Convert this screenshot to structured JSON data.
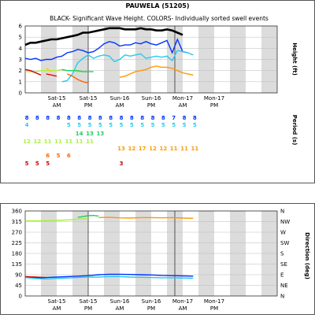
{
  "chart_data": [
    {
      "type": "line",
      "title": "PAUWELA (51205)",
      "subtitle": "BLACK- Significant Wave Height.  COLORS- Individually sorted swell events",
      "ylabel": "Height (ft)",
      "ylim": [
        0,
        6
      ],
      "yticks": [
        "0",
        "1",
        "2",
        "3",
        "4",
        "5",
        "6"
      ],
      "xlim": [
        0,
        96
      ],
      "x_tick_labels": [
        {
          "x": 12,
          "line1": "Sat-15",
          "line2": "AM"
        },
        {
          "x": 24,
          "line1": "Sat-15",
          "line2": "PM"
        },
        {
          "x": 36,
          "line1": "Sun-16",
          "line2": "AM"
        },
        {
          "x": 48,
          "line1": "Sun-16",
          "line2": "PM"
        },
        {
          "x": 60,
          "line1": "Mon-17",
          "line2": "AM"
        },
        {
          "x": 72,
          "line1": "Mon-17",
          "line2": "PM"
        }
      ],
      "grid": true,
      "series": [
        {
          "color": "#000000",
          "x": [
            0,
            2,
            4,
            6,
            8,
            10,
            12,
            14,
            16,
            18,
            20,
            22,
            24,
            26,
            28,
            30,
            32,
            34,
            36,
            38,
            40,
            42,
            44,
            46,
            48,
            50,
            52,
            54,
            56,
            58,
            60
          ],
          "y": [
            4.3,
            4.5,
            4.5,
            4.6,
            4.7,
            4.8,
            4.8,
            4.9,
            5.0,
            5.1,
            5.2,
            5.4,
            5.4,
            5.5,
            5.6,
            5.7,
            5.8,
            5.8,
            5.8,
            5.7,
            5.7,
            5.7,
            5.8,
            5.7,
            5.7,
            5.6,
            5.6,
            5.7,
            5.6,
            5.4,
            5.2
          ]
        },
        {
          "color": "#0033ff",
          "x": [
            0,
            2,
            4,
            6,
            8,
            10,
            12,
            14,
            16,
            18,
            20,
            22,
            24,
            26,
            28,
            30,
            32,
            34,
            36,
            38,
            40,
            42,
            44,
            46,
            48,
            50,
            52,
            54,
            56,
            58,
            60,
            62
          ],
          "y": [
            3.1,
            3.0,
            3.1,
            2.9,
            3.0,
            3.0,
            3.2,
            3.3,
            3.6,
            3.7,
            3.9,
            3.8,
            3.6,
            3.7,
            4.0,
            4.4,
            4.6,
            4.5,
            4.2,
            4.3,
            4.3,
            4.5,
            4.4,
            4.6,
            4.4,
            4.3,
            4.5,
            4.7,
            3.6,
            4.8,
            3.7,
            3.6
          ]
        },
        {
          "color": "#22ccee",
          "x": [
            14,
            16,
            18,
            20,
            22,
            24,
            26,
            28,
            30,
            32,
            34,
            36,
            38,
            40,
            42,
            44,
            46,
            48,
            50,
            52,
            54,
            56,
            58,
            60,
            62,
            64
          ],
          "y": [
            1.0,
            1.1,
            1.7,
            2.7,
            3.1,
            3.4,
            3.1,
            3.3,
            3.4,
            3.3,
            2.8,
            3.0,
            3.4,
            3.3,
            3.4,
            3.5,
            3.1,
            3.2,
            3.3,
            3.2,
            3.3,
            2.9,
            3.8,
            3.7,
            3.6,
            3.4
          ]
        },
        {
          "color": "#ff9900",
          "x": [
            36,
            38,
            40,
            42,
            44,
            46,
            48,
            50,
            52,
            54,
            56,
            58,
            60,
            62,
            64
          ],
          "y": [
            1.4,
            1.5,
            1.7,
            1.9,
            2.0,
            2.1,
            2.3,
            2.4,
            2.3,
            2.3,
            2.2,
            2.0,
            1.8,
            1.7,
            1.6
          ]
        },
        {
          "color": "#aaee44",
          "x": [
            0,
            2,
            4,
            6,
            8,
            10,
            12,
            14,
            16,
            18,
            20,
            22,
            24
          ],
          "y": [
            1.9,
            1.9,
            1.9,
            2.0,
            2.0,
            2.0,
            2.0,
            2.1,
            2.0,
            2.0,
            1.9,
            1.9,
            1.9
          ]
        },
        {
          "color": "#22cc66",
          "x": [
            14,
            16,
            18,
            20,
            22,
            24,
            26
          ],
          "y": [
            2.1,
            2.0,
            2.0,
            2.0,
            1.9,
            1.9,
            1.9
          ]
        },
        {
          "color": "#ffcc00",
          "x": [
            8,
            10
          ],
          "y": [
            2.2,
            1.9
          ]
        },
        {
          "color": "#ff6600",
          "x": [
            16,
            18,
            20,
            22,
            24
          ],
          "y": [
            1.7,
            1.5,
            1.2,
            1.0,
            0.9
          ]
        },
        {
          "color": "#cc0000",
          "x": [
            0,
            2,
            4,
            6
          ],
          "y": [
            2.1,
            2.0,
            1.8,
            1.6
          ]
        },
        {
          "color": "#ff0000",
          "x": [
            8,
            10,
            12
          ],
          "y": [
            1.7,
            1.6,
            1.5
          ]
        }
      ]
    },
    {
      "type": "table",
      "ylabel": "Period (s)",
      "rows": [
        {
          "color": "#0033ff",
          "x": [
            0,
            4,
            8,
            12,
            16,
            20,
            24,
            28,
            32,
            36,
            40,
            44,
            48,
            52,
            56,
            60,
            64
          ],
          "values": [
            "8",
            "8",
            "8",
            "8",
            "8",
            "8",
            "8",
            "8",
            "8",
            "8",
            "8",
            "8",
            "8",
            "8",
            "7",
            "8",
            "8"
          ]
        },
        {
          "color": "#22ccee",
          "x": [
            0,
            16,
            20,
            24,
            28,
            32,
            36,
            40,
            44,
            48,
            52,
            56,
            60,
            64
          ],
          "values": [
            "4",
            "5",
            "5",
            "5",
            "5",
            "5",
            "5",
            "5",
            "5",
            "5",
            "5",
            "5",
            "5",
            "5"
          ]
        },
        {
          "color": "#22cc66",
          "x": [
            20,
            24,
            28
          ],
          "values": [
            "14",
            "13",
            "13"
          ]
        },
        {
          "color": "#aaee44",
          "x": [
            0,
            4,
            8,
            12,
            16,
            20,
            24
          ],
          "values": [
            "12",
            "12",
            "11",
            "11",
            "11",
            "11",
            "11"
          ]
        },
        {
          "color": "#ff9900",
          "x": [
            36,
            40,
            44,
            48,
            52,
            56,
            60,
            64
          ],
          "values": [
            "13",
            "12",
            "17",
            "12",
            "12",
            "11",
            "11",
            "11"
          ]
        },
        {
          "color": "#ff6600",
          "x": [
            8,
            12,
            16
          ],
          "values": [
            "6",
            "5",
            "6"
          ]
        },
        {
          "color": "#cc0000",
          "x": [
            0,
            4,
            8,
            36
          ],
          "values": [
            "5",
            "5",
            "5",
            "3"
          ]
        }
      ]
    },
    {
      "type": "line",
      "ylabel": "Direction (deg)",
      "ylim": [
        0,
        360
      ],
      "yticks": [
        "0",
        "45",
        "90",
        "135",
        "180",
        "225",
        "270",
        "315",
        "360"
      ],
      "right_ticks": [
        "N",
        "NE",
        "E",
        "SE",
        "S",
        "SW",
        "W",
        "NW",
        "N"
      ],
      "xlim": [
        0,
        96
      ],
      "x_tick_labels": [
        {
          "x": 12,
          "line1": "Sat-15",
          "line2": "AM"
        },
        {
          "x": 24,
          "line1": "Sat-15",
          "line2": "PM"
        },
        {
          "x": 36,
          "line1": "Sun-16",
          "line2": "AM"
        },
        {
          "x": 48,
          "line1": "Sun-16",
          "line2": "PM"
        },
        {
          "x": 60,
          "line1": "Mon-17",
          "line2": "AM"
        },
        {
          "x": 72,
          "line1": "Mon-17",
          "line2": "PM"
        }
      ],
      "grid": true,
      "series": [
        {
          "color": "#aaee44",
          "x": [
            0,
            4,
            8,
            12,
            16,
            20,
            24
          ],
          "y": [
            318,
            318,
            319,
            320,
            322,
            325,
            328
          ]
        },
        {
          "color": "#22cc66",
          "x": [
            20,
            22,
            24,
            26,
            28
          ],
          "y": [
            333,
            336,
            340,
            341,
            338
          ]
        },
        {
          "color": "#ff9900",
          "x": [
            28,
            32,
            36,
            40,
            44,
            48,
            52,
            56,
            60,
            64
          ],
          "y": [
            332,
            333,
            331,
            330,
            332,
            332,
            331,
            332,
            330,
            329
          ]
        },
        {
          "color": "#0033ff",
          "x": [
            0,
            4,
            8,
            12,
            16,
            20,
            24,
            28,
            32,
            36,
            40,
            44,
            48,
            52,
            56,
            60,
            64
          ],
          "y": [
            80,
            76,
            78,
            80,
            82,
            84,
            86,
            90,
            92,
            92,
            91,
            90,
            89,
            87,
            86,
            85,
            84
          ]
        },
        {
          "color": "#22ccee",
          "x": [
            0,
            4,
            8,
            12,
            16,
            20,
            24,
            28,
            32,
            36,
            40,
            44,
            48,
            52,
            56,
            60,
            64
          ],
          "y": [
            78,
            74,
            72,
            74,
            76,
            78,
            80,
            80,
            82,
            82,
            80,
            79,
            78,
            77,
            77,
            76,
            75
          ]
        },
        {
          "color": "#cc0000",
          "x": [
            0,
            4,
            8
          ],
          "y": [
            82,
            80,
            78
          ]
        }
      ]
    }
  ]
}
